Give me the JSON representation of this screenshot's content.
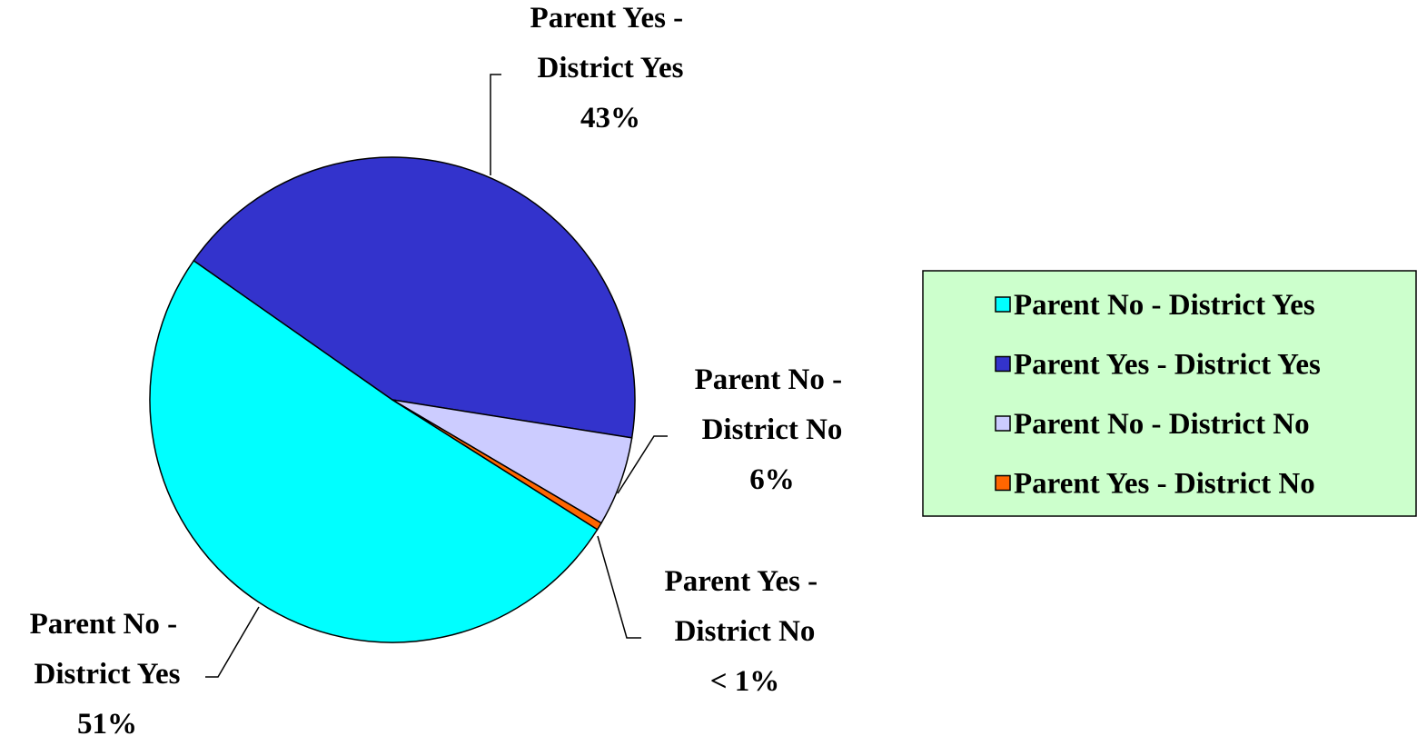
{
  "chart_data": {
    "type": "pie",
    "categories": [
      "Parent No - District Yes",
      "Parent Yes - District Yes",
      "Parent No - District No",
      "Parent Yes - District No"
    ],
    "values": [
      51,
      43,
      6,
      0.5
    ],
    "value_labels": [
      "51%",
      "43%",
      "6%",
      "< 1%"
    ],
    "colors": [
      "#00ffff",
      "#3333cc",
      "#ccccff",
      "#ff6600"
    ],
    "legend": "right"
  }
}
